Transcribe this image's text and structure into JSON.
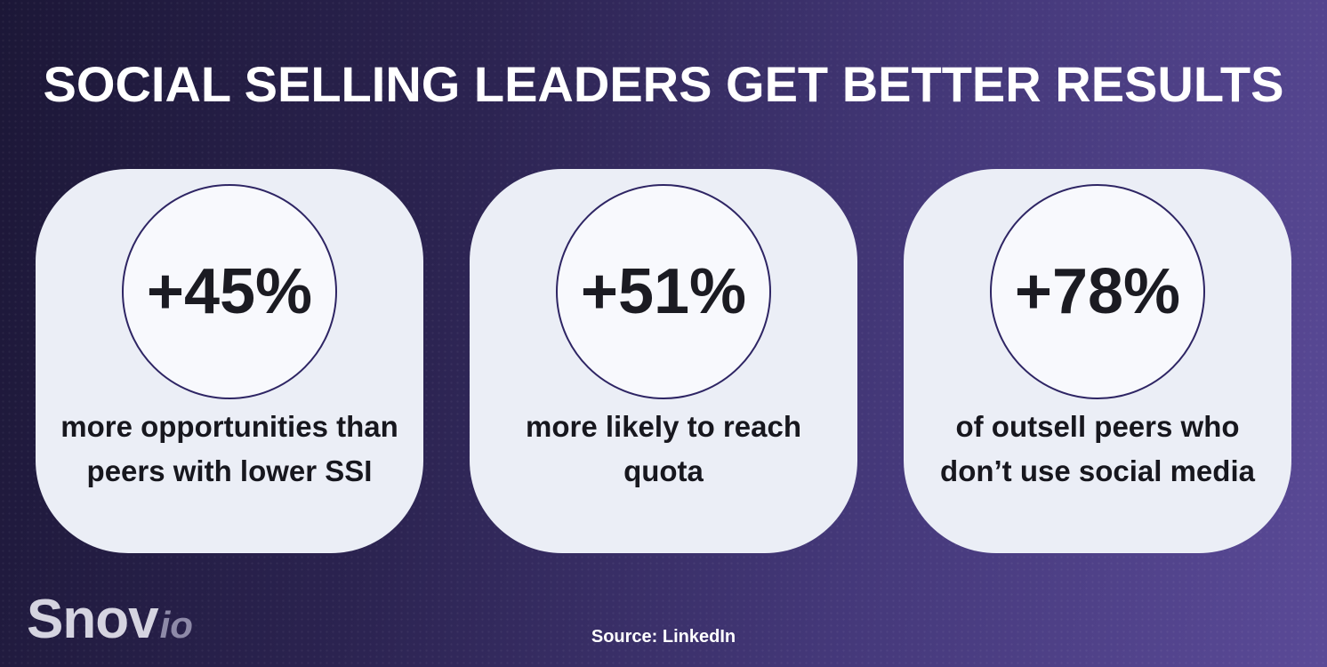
{
  "title": "SOCIAL SELLING LEADERS GET BETTER RESULTS",
  "cards": [
    {
      "value": "+45%",
      "caption": "more opportunities than peers with lower SSI"
    },
    {
      "value": "+51%",
      "caption": "more likely to reach quota"
    },
    {
      "value": "+78%",
      "caption": "of outsell peers who don’t use social media"
    }
  ],
  "footer": {
    "logo_primary": "Snov",
    "logo_suffix": "io",
    "source": "Source: LinkedIn"
  },
  "colors": {
    "background_dark": "#1c1737",
    "background_light": "#5a4a97",
    "card_fill": "#ebeef6",
    "circle_fill": "#f8f9fd",
    "circle_border": "#2e2564",
    "text_dark": "#17171e",
    "title_text": "#ffffff"
  },
  "chart_data": {
    "type": "table",
    "title": "SOCIAL SELLING LEADERS GET BETTER RESULTS",
    "categories": [
      "more opportunities than peers with lower SSI",
      "more likely to reach quota",
      "of outsell peers who don’t use social media"
    ],
    "values": [
      45,
      51,
      78
    ],
    "value_labels": [
      "+45%",
      "+51%",
      "+78%"
    ],
    "unit": "percent",
    "source": "Source: LinkedIn"
  }
}
